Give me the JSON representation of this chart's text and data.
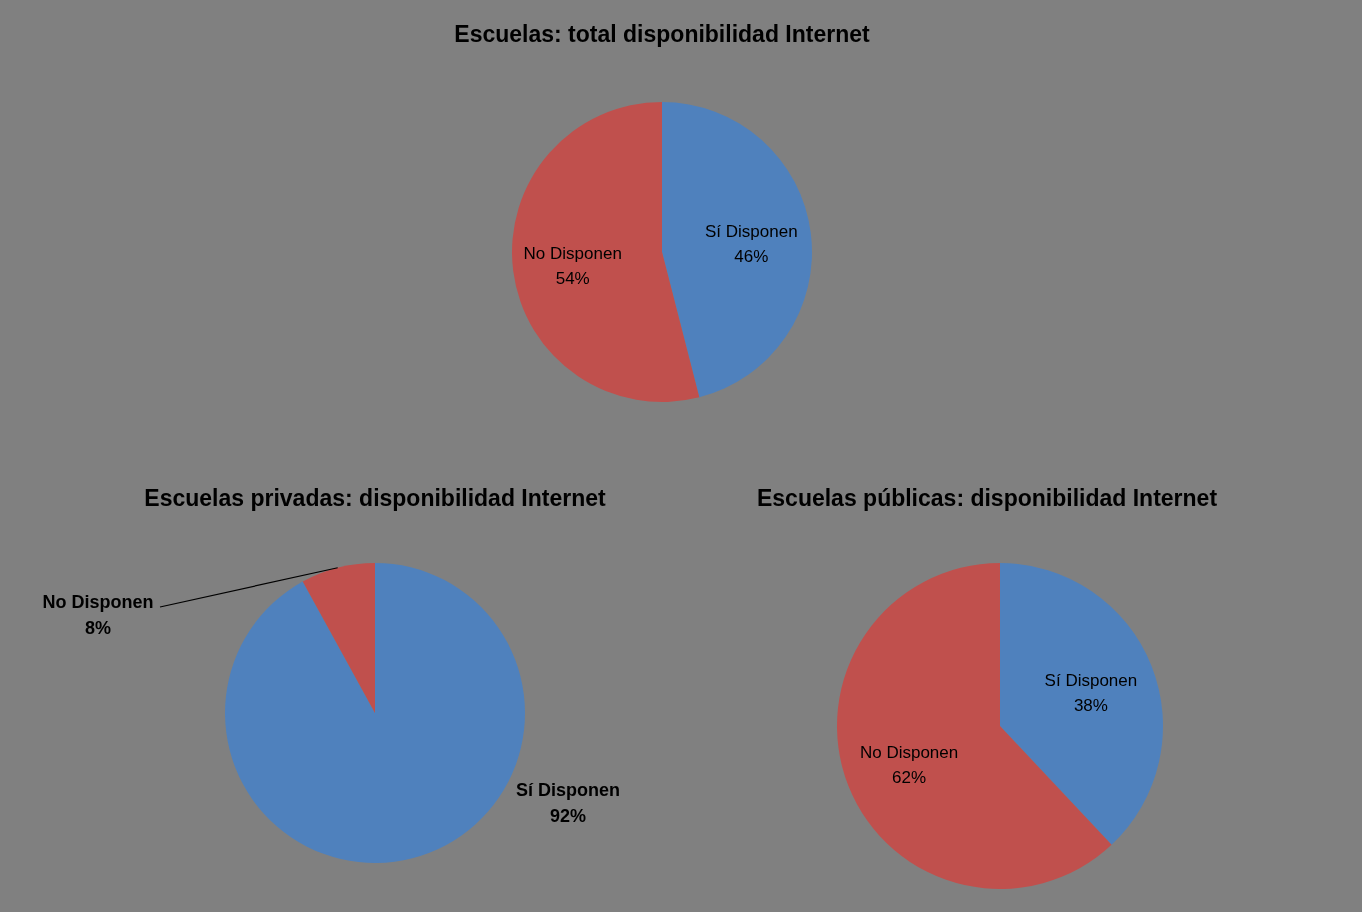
{
  "chart_data": [
    {
      "type": "pie",
      "title": "Escuelas: total disponibilidad Internet",
      "categories": [
        "Sí Disponen",
        "No Disponen"
      ],
      "values": [
        46,
        54
      ],
      "colors": [
        "#4f81bd",
        "#c0504d"
      ],
      "value_labels": [
        "46%",
        "54%"
      ]
    },
    {
      "type": "pie",
      "title": "Escuelas privadas: disponibilidad Internet",
      "categories": [
        "Sí Disponen",
        "No Disponen"
      ],
      "values": [
        92,
        8
      ],
      "colors": [
        "#4f81bd",
        "#c0504d"
      ],
      "value_labels": [
        "92%",
        "8%"
      ]
    },
    {
      "type": "pie",
      "title": "Escuelas públicas: disponibilidad Internet",
      "categories": [
        "Sí Disponen",
        "No Disponen"
      ],
      "values": [
        38,
        62
      ],
      "colors": [
        "#4f81bd",
        "#c0504d"
      ],
      "value_labels": [
        "38%",
        "62%"
      ]
    }
  ]
}
